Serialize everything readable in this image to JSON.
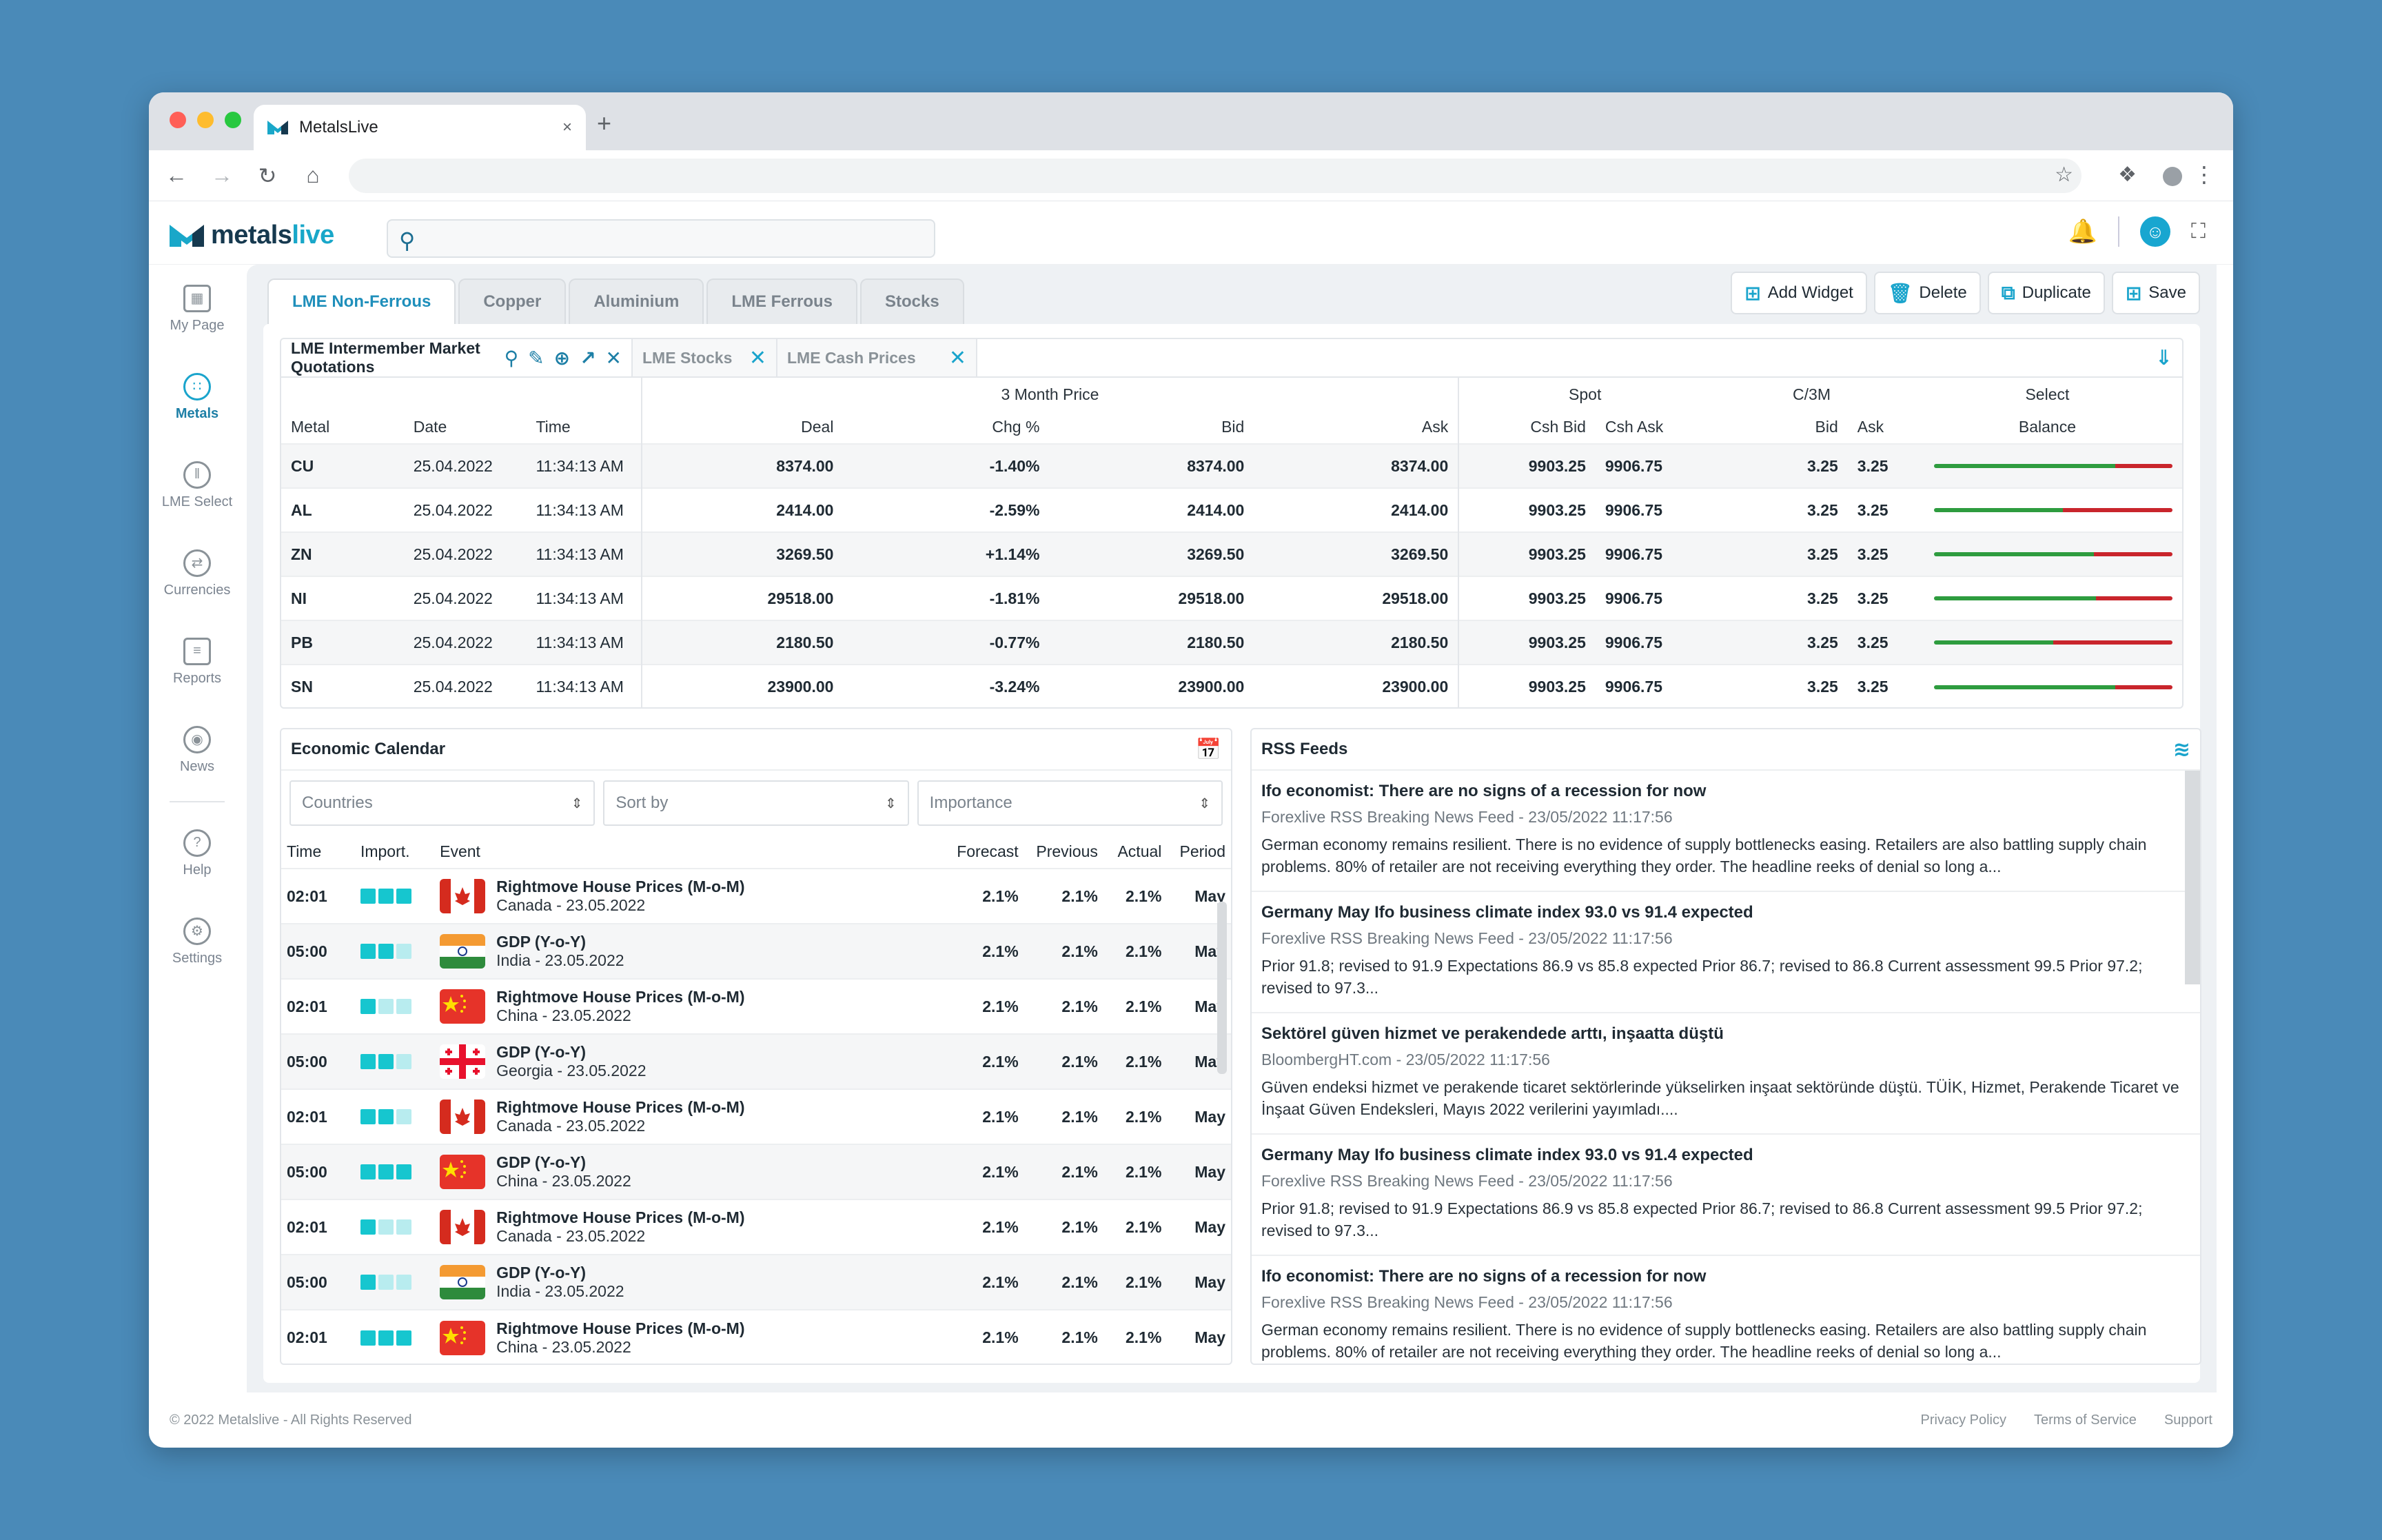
{
  "browser": {
    "tab_title": "MetalsLive",
    "close_glyph": "×",
    "new_tab_glyph": "+"
  },
  "app": {
    "logo_metals": "metals",
    "logo_live": "live",
    "search_placeholder": ""
  },
  "sidebar": {
    "items": [
      {
        "label": "My Page",
        "icon": "grid-icon"
      },
      {
        "label": "Metals",
        "icon": "metals-icon"
      },
      {
        "label": "LME Select",
        "icon": "chart-icon"
      },
      {
        "label": "Currencies",
        "icon": "currency-icon"
      },
      {
        "label": "Reports",
        "icon": "report-icon"
      },
      {
        "label": "News",
        "icon": "broadcast-icon"
      },
      {
        "label": "Help",
        "icon": "help-icon"
      },
      {
        "label": "Settings",
        "icon": "gear-icon"
      }
    ]
  },
  "page_tabs": [
    "LME Non-Ferrous",
    "Copper",
    "Aluminium",
    "LME Ferrous",
    "Stocks"
  ],
  "actions": {
    "add_widget": "Add Widget",
    "delete": "Delete",
    "duplicate": "Duplicate",
    "save": "Save"
  },
  "quotations": {
    "tab_main": "LME Intermember Market Quotations",
    "tab_stocks": "LME Stocks",
    "tab_cash": "LME Cash Prices",
    "group_headers": {
      "three_month": "3 Month Price",
      "spot": "Spot",
      "c3m": "C/3M",
      "select": "Select"
    },
    "columns": [
      "Metal",
      "Date",
      "Time",
      "Deal",
      "Chg %",
      "Bid",
      "Ask",
      "Csh Bid",
      "Csh Ask",
      "Bid",
      "Ask",
      "Balance"
    ],
    "rows": [
      {
        "metal": "CU",
        "date": "25.04.2022",
        "time": "11:34:13 AM",
        "deal": "8374.00",
        "chg": "-1.40%",
        "bid": "8374.00",
        "ask": "8374.00",
        "csh_bid": "9903.25",
        "csh_ask": "9906.75",
        "c_bid": "3.25",
        "c_ask": "3.25",
        "balance": 0.76
      },
      {
        "metal": "AL",
        "date": "25.04.2022",
        "time": "11:34:13 AM",
        "deal": "2414.00",
        "chg": "-2.59%",
        "bid": "2414.00",
        "ask": "2414.00",
        "csh_bid": "9903.25",
        "csh_ask": "9906.75",
        "c_bid": "3.25",
        "c_ask": "3.25",
        "balance": 0.54
      },
      {
        "metal": "ZN",
        "date": "25.04.2022",
        "time": "11:34:13 AM",
        "deal": "3269.50",
        "chg": "+1.14%",
        "bid": "3269.50",
        "ask": "3269.50",
        "csh_bid": "9903.25",
        "csh_ask": "9906.75",
        "c_bid": "3.25",
        "c_ask": "3.25",
        "balance": 0.67
      },
      {
        "metal": "NI",
        "date": "25.04.2022",
        "time": "11:34:13 AM",
        "deal": "29518.00",
        "chg": "-1.81%",
        "bid": "29518.00",
        "ask": "29518.00",
        "csh_bid": "9903.25",
        "csh_ask": "9906.75",
        "c_bid": "3.25",
        "c_ask": "3.25",
        "balance": 0.68
      },
      {
        "metal": "PB",
        "date": "25.04.2022",
        "time": "11:34:13 AM",
        "deal": "2180.50",
        "chg": "-0.77%",
        "bid": "2180.50",
        "ask": "2180.50",
        "csh_bid": "9903.25",
        "csh_ask": "9906.75",
        "c_bid": "3.25",
        "c_ask": "3.25",
        "balance": 0.5
      },
      {
        "metal": "SN",
        "date": "25.04.2022",
        "time": "11:34:13 AM",
        "deal": "23900.00",
        "chg": "-3.24%",
        "bid": "23900.00",
        "ask": "23900.00",
        "csh_bid": "9903.25",
        "csh_ask": "9906.75",
        "c_bid": "3.25",
        "c_ask": "3.25",
        "balance": 0.76
      }
    ]
  },
  "calendar": {
    "title": "Economic Calendar",
    "filters": [
      "Countries",
      "Sort by",
      "Importance"
    ],
    "columns": [
      "Time",
      "Import.",
      "Event",
      "Forecast",
      "Previous",
      "Actual",
      "Period"
    ],
    "rows": [
      {
        "time": "02:01",
        "imp": 3,
        "event": "Rightmove House Prices (M-o-M)",
        "sub": "Canada - 23.05.2022",
        "flag": "canada",
        "forecast": "2.1%",
        "previous": "2.1%",
        "actual": "2.1%",
        "period": "May"
      },
      {
        "time": "05:00",
        "imp": 2,
        "event": "GDP (Y-o-Y)",
        "sub": "India - 23.05.2022",
        "flag": "india",
        "forecast": "2.1%",
        "previous": "2.1%",
        "actual": "2.1%",
        "period": "May"
      },
      {
        "time": "02:01",
        "imp": 1,
        "event": "Rightmove House Prices (M-o-M)",
        "sub": "China - 23.05.2022",
        "flag": "china",
        "forecast": "2.1%",
        "previous": "2.1%",
        "actual": "2.1%",
        "period": "May"
      },
      {
        "time": "05:00",
        "imp": 2,
        "event": "GDP (Y-o-Y)",
        "sub": "Georgia - 23.05.2022",
        "flag": "georgia",
        "forecast": "2.1%",
        "previous": "2.1%",
        "actual": "2.1%",
        "period": "May"
      },
      {
        "time": "02:01",
        "imp": 2,
        "event": "Rightmove House Prices (M-o-M)",
        "sub": "Canada - 23.05.2022",
        "flag": "canada",
        "forecast": "2.1%",
        "previous": "2.1%",
        "actual": "2.1%",
        "period": "May"
      },
      {
        "time": "05:00",
        "imp": 3,
        "event": "GDP (Y-o-Y)",
        "sub": "China - 23.05.2022",
        "flag": "china",
        "forecast": "2.1%",
        "previous": "2.1%",
        "actual": "2.1%",
        "period": "May"
      },
      {
        "time": "02:01",
        "imp": 1,
        "event": "Rightmove House Prices (M-o-M)",
        "sub": "Canada - 23.05.2022",
        "flag": "canada",
        "forecast": "2.1%",
        "previous": "2.1%",
        "actual": "2.1%",
        "period": "May"
      },
      {
        "time": "05:00",
        "imp": 1,
        "event": "GDP (Y-o-Y)",
        "sub": "India - 23.05.2022",
        "flag": "india",
        "forecast": "2.1%",
        "previous": "2.1%",
        "actual": "2.1%",
        "period": "May"
      },
      {
        "time": "02:01",
        "imp": 3,
        "event": "Rightmove House Prices (M-o-M)",
        "sub": "China - 23.05.2022",
        "flag": "china",
        "forecast": "2.1%",
        "previous": "2.1%",
        "actual": "2.1%",
        "period": "May"
      }
    ]
  },
  "rss": {
    "title": "RSS Feeds",
    "items": [
      {
        "title": "Ifo economist: There are no signs of a recession for now",
        "source": "Forexlive RSS Breaking News Feed - 23/05/2022 11:17:56",
        "body": "German economy remains resilient. There is no evidence of supply bottlenecks easing. Retailers are also battling supply chain problems. 80% of retailer are not receiving everything they order. The headline reeks of denial so long a..."
      },
      {
        "title": "Germany May Ifo business climate index 93.0 vs 91.4 expected",
        "source": "Forexlive RSS Breaking News Feed - 23/05/2022 11:17:56",
        "body": "Prior 91.8; revised to 91.9 Expectations 86.9 vs 85.8 expected Prior 86.7; revised to 86.8 Current assessment 99.5 Prior 97.2; revised to 97.3..."
      },
      {
        "title": "Sektörel güven hizmet ve perakendede arttı, inşaatta düştü",
        "source": "BloombergHT.com - 23/05/2022 11:17:56",
        "body": "Güven endeksi hizmet ve perakende ticaret sektörlerinde yükselirken inşaat sektöründe düştü. TÜİK, Hizmet, Perakende Ticaret ve İnşaat Güven Endeksleri, Mayıs 2022 verilerini yayımladı...."
      },
      {
        "title": "Germany May Ifo business climate index 93.0 vs 91.4 expected",
        "source": "Forexlive RSS Breaking News Feed - 23/05/2022 11:17:56",
        "body": "Prior 91.8; revised to 91.9 Expectations 86.9 vs 85.8 expected Prior 86.7; revised to 86.8 Current assessment 99.5 Prior 97.2; revised to 97.3..."
      },
      {
        "title": "Ifo economist: There are no signs of a recession for now",
        "source": "Forexlive RSS Breaking News Feed - 23/05/2022 11:17:56",
        "body": "German economy remains resilient. There is no evidence of supply bottlenecks easing. Retailers are also battling supply chain problems. 80% of retailer are not receiving everything they order. The headline reeks of denial so long a..."
      }
    ]
  },
  "footer": {
    "copyright": "© 2022 Metalslive - All Rights Reserved",
    "links": [
      "Privacy Policy",
      "Terms of Service",
      "Support"
    ]
  },
  "colors": {
    "accent": "#1aa4cc",
    "brand_dark": "#16394f",
    "balance_green": "#2e9c3f",
    "balance_red": "#c9252c"
  }
}
